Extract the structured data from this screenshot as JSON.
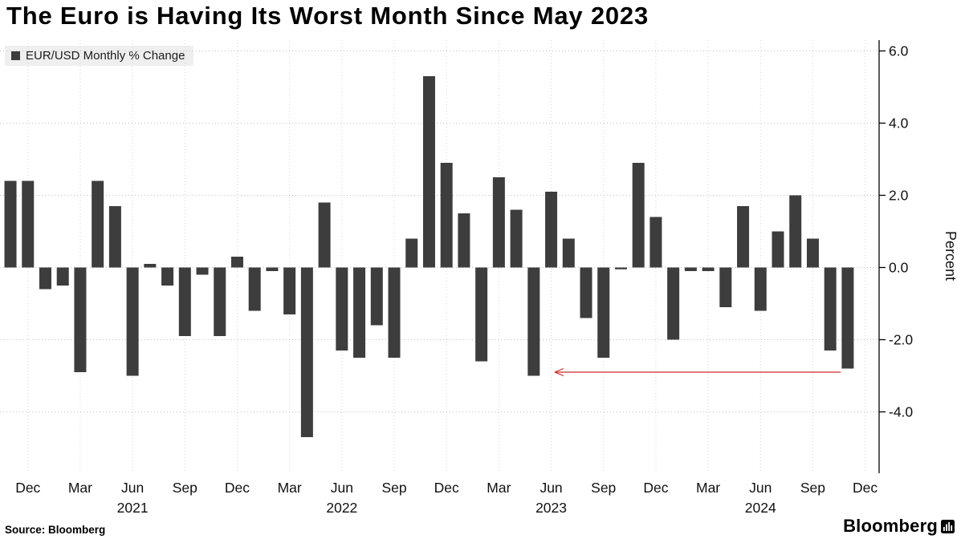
{
  "title": "The Euro is Having Its Worst Month Since May 2023",
  "legend": {
    "label": "EUR/USD Monthly % Change"
  },
  "source": "Source: Bloomberg",
  "brand": "Bloomberg",
  "colors": {
    "bar": "#3d3d3d",
    "annotation_arrow": "#cd2a2a",
    "legend_background": "#efefef",
    "gridline": "#bfbfbf",
    "axis": "#000000"
  },
  "chart_data": {
    "type": "bar",
    "title": "EUR/USD Monthly % Change",
    "ylabel": "Percent",
    "ylim": [
      -5.7,
      6.3
    ],
    "yticks": [
      6,
      4,
      2,
      0,
      -2,
      -4
    ],
    "grid": true,
    "legend_position": "top-left",
    "bar_color": "#3d3d3d",
    "months": [
      "Nov 2020",
      "Dec 2020",
      "Jan 2021",
      "Feb 2021",
      "Mar 2021",
      "Apr 2021",
      "May 2021",
      "Jun 2021",
      "Jul 2021",
      "Aug 2021",
      "Sep 2021",
      "Oct 2021",
      "Nov 2021",
      "Dec 2021",
      "Jan 2022",
      "Feb 2022",
      "Mar 2022",
      "Apr 2022",
      "May 2022",
      "Jun 2022",
      "Jul 2022",
      "Aug 2022",
      "Sep 2022",
      "Oct 2022",
      "Nov 2022",
      "Dec 2022",
      "Jan 2023",
      "Feb 2023",
      "Mar 2023",
      "Apr 2023",
      "May 2023",
      "Jun 2023",
      "Jul 2023",
      "Aug 2023",
      "Sep 2023",
      "Oct 2023",
      "Nov 2023",
      "Dec 2023",
      "Jan 2024",
      "Feb 2024",
      "Mar 2024",
      "Apr 2024",
      "May 2024",
      "Jun 2024",
      "Jul 2024",
      "Aug 2024",
      "Sep 2024",
      "Oct 2024",
      "Nov 2024"
    ],
    "values": [
      2.4,
      2.4,
      -0.6,
      -0.5,
      -2.9,
      2.4,
      1.7,
      -3.0,
      0.1,
      -0.5,
      -1.9,
      -0.2,
      -1.9,
      0.3,
      -1.2,
      -0.1,
      -1.3,
      -4.7,
      1.8,
      -2.3,
      -2.5,
      -1.6,
      -2.5,
      0.8,
      5.3,
      2.9,
      1.5,
      -2.6,
      2.5,
      1.6,
      -3.0,
      2.1,
      0.8,
      -1.4,
      -2.5,
      -0.05,
      2.9,
      1.4,
      -2.0,
      -0.1,
      -0.1,
      -1.1,
      1.7,
      -1.2,
      1.0,
      2.0,
      0.8,
      -2.3,
      -2.8
    ],
    "x_ticks": [
      {
        "i": 1,
        "label": "Dec"
      },
      {
        "i": 4,
        "label": "Mar"
      },
      {
        "i": 7,
        "label": "Jun"
      },
      {
        "i": 10,
        "label": "Sep"
      },
      {
        "i": 13,
        "label": "Dec"
      },
      {
        "i": 16,
        "label": "Mar"
      },
      {
        "i": 19,
        "label": "Jun"
      },
      {
        "i": 22,
        "label": "Sep"
      },
      {
        "i": 25,
        "label": "Dec"
      },
      {
        "i": 28,
        "label": "Mar"
      },
      {
        "i": 31,
        "label": "Jun"
      },
      {
        "i": 34,
        "label": "Sep"
      },
      {
        "i": 37,
        "label": "Dec"
      },
      {
        "i": 40,
        "label": "Mar"
      },
      {
        "i": 43,
        "label": "Jun"
      },
      {
        "i": 46,
        "label": "Sep"
      },
      {
        "i": 49,
        "label": "Dec"
      }
    ],
    "year_labels": [
      {
        "i": 7,
        "label": "2021"
      },
      {
        "i": 19,
        "label": "2022"
      },
      {
        "i": 31,
        "label": "2023"
      },
      {
        "i": 43,
        "label": "2024"
      }
    ],
    "annotation": {
      "shape": "arrow",
      "color": "#cd2a2a",
      "y": -2.9,
      "from_month_index": 47.6,
      "to_month_index": 31.2
    }
  }
}
